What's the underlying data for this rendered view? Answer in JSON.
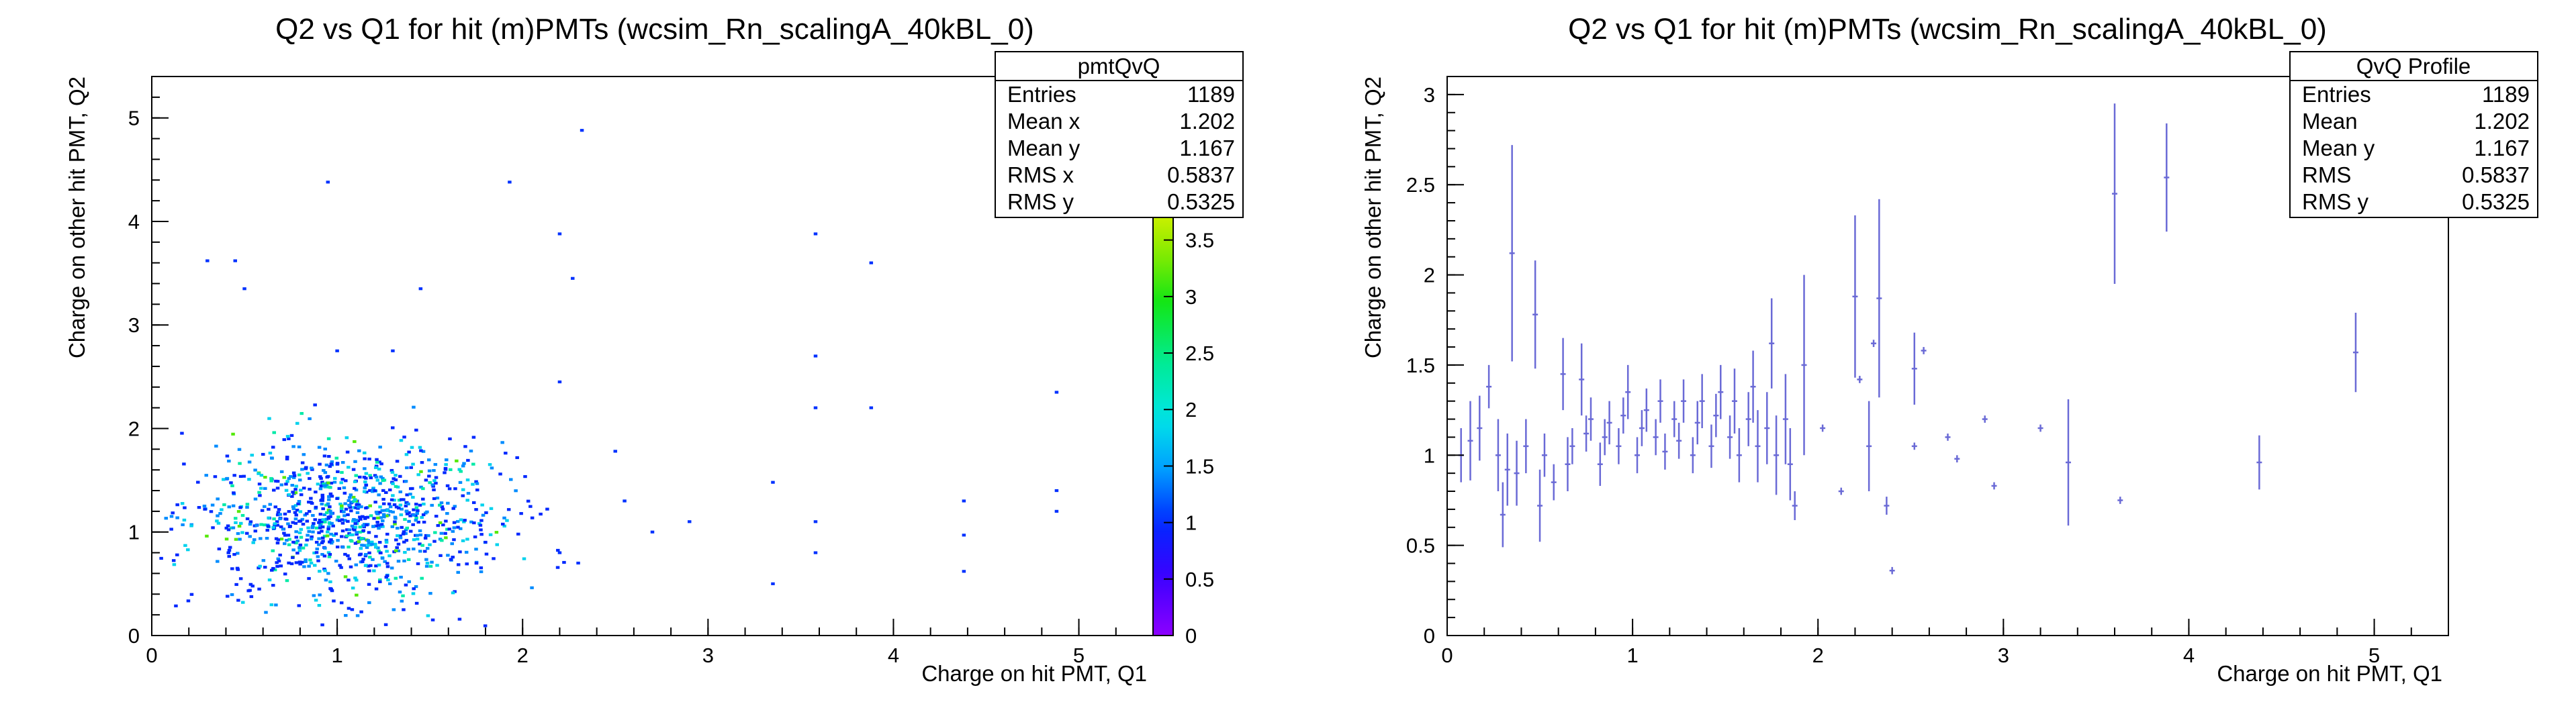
{
  "chart_data": [
    {
      "type": "heatmap",
      "title": "Q2 vs Q1 for hit (m)PMTs (wcsim_Rn_scalingA_40kBL_0)",
      "xlabel": "Charge on hit PMT, Q1",
      "ylabel": "Charge on other hit PMT, Q2",
      "xlim": [
        0,
        5.4
      ],
      "ylim": [
        0,
        5.4
      ],
      "xticks": [
        "0",
        "1",
        "2",
        "3",
        "4",
        "5"
      ],
      "yticks": [
        "0",
        "1",
        "2",
        "3",
        "4",
        "5"
      ],
      "colorbar": {
        "range": [
          0,
          3.7
        ],
        "ticks": [
          "0",
          "0.5",
          "1",
          "1.5",
          "2",
          "2.5",
          "3",
          "3.5"
        ]
      },
      "stats": {
        "name": "pmtQvQ",
        "rows": [
          {
            "label": "Entries",
            "value": "1189"
          },
          {
            "label": "Mean x",
            "value": "1.202"
          },
          {
            "label": "Mean y",
            "value": "1.167"
          },
          {
            "label": "RMS x",
            "value": "0.5837"
          },
          {
            "label": "RMS y",
            "value": "0.5325"
          }
        ]
      },
      "cluster": {
        "center_x": 1.05,
        "center_y": 1.1,
        "spread_x": 0.42,
        "spread_y": 0.38,
        "count": 1050
      },
      "outliers": [
        [
          0.95,
          4.38
        ],
        [
          1.93,
          4.38
        ],
        [
          2.32,
          4.88
        ],
        [
          2.2,
          3.88
        ],
        [
          3.58,
          3.88
        ],
        [
          0.3,
          3.62
        ],
        [
          0.45,
          3.62
        ],
        [
          0.5,
          3.35
        ],
        [
          1.45,
          3.35
        ],
        [
          3.88,
          3.6
        ],
        [
          2.27,
          3.45
        ],
        [
          1.0,
          2.75
        ],
        [
          1.3,
          2.75
        ],
        [
          2.2,
          2.45
        ],
        [
          3.58,
          2.7
        ],
        [
          4.88,
          2.35
        ],
        [
          3.58,
          2.2
        ],
        [
          3.88,
          2.2
        ],
        [
          2.5,
          1.78
        ],
        [
          3.35,
          1.48
        ],
        [
          4.88,
          1.4
        ],
        [
          4.38,
          1.3
        ],
        [
          2.9,
          1.1
        ],
        [
          3.58,
          1.1
        ],
        [
          4.38,
          0.97
        ],
        [
          4.88,
          1.2
        ],
        [
          2.2,
          0.8
        ],
        [
          2.3,
          0.7
        ],
        [
          3.35,
          0.5
        ],
        [
          3.58,
          0.8
        ],
        [
          4.38,
          0.62
        ],
        [
          2.7,
          1.0
        ],
        [
          2.55,
          1.3
        ]
      ]
    },
    {
      "type": "scatter",
      "title": "Q2 vs Q1 for hit (m)PMTs (wcsim_Rn_scalingA_40kBL_0)",
      "xlabel": "Charge on hit PMT, Q1",
      "ylabel": "Charge on other hit PMT, Q2",
      "xlim": [
        0,
        5.4
      ],
      "ylim": [
        0,
        3.1
      ],
      "xticks": [
        "0",
        "1",
        "2",
        "3",
        "4",
        "5"
      ],
      "yticks": [
        "0",
        "0.5",
        "1",
        "1.5",
        "2",
        "2.5",
        "3"
      ],
      "stats": {
        "name": "QvQ Profile",
        "rows": [
          {
            "label": "Entries",
            "value": "1189"
          },
          {
            "label": "Mean",
            "value": "1.202"
          },
          {
            "label": "Mean y",
            "value": "1.167"
          },
          {
            "label": "RMS",
            "value": "0.5837"
          },
          {
            "label": "RMS y",
            "value": "0.5325"
          }
        ]
      },
      "points": [
        {
          "x": 0.075,
          "y": 1.0,
          "err": 0.15
        },
        {
          "x": 0.125,
          "y": 1.08,
          "err": 0.22
        },
        {
          "x": 0.175,
          "y": 1.15,
          "err": 0.18
        },
        {
          "x": 0.225,
          "y": 1.38,
          "err": 0.12
        },
        {
          "x": 0.275,
          "y": 1.0,
          "err": 0.2
        },
        {
          "x": 0.3,
          "y": 0.67,
          "err": 0.18
        },
        {
          "x": 0.325,
          "y": 0.92,
          "err": 0.2
        },
        {
          "x": 0.35,
          "y": 2.12,
          "err": 0.6
        },
        {
          "x": 0.375,
          "y": 0.9,
          "err": 0.18
        },
        {
          "x": 0.425,
          "y": 1.05,
          "err": 0.15
        },
        {
          "x": 0.475,
          "y": 1.78,
          "err": 0.3
        },
        {
          "x": 0.5,
          "y": 0.72,
          "err": 0.2
        },
        {
          "x": 0.525,
          "y": 1.0,
          "err": 0.12
        },
        {
          "x": 0.575,
          "y": 0.85,
          "err": 0.1
        },
        {
          "x": 0.625,
          "y": 1.45,
          "err": 0.2
        },
        {
          "x": 0.65,
          "y": 0.95,
          "err": 0.15
        },
        {
          "x": 0.675,
          "y": 1.05,
          "err": 0.1
        },
        {
          "x": 0.725,
          "y": 1.42,
          "err": 0.2
        },
        {
          "x": 0.75,
          "y": 1.12,
          "err": 0.1
        },
        {
          "x": 0.775,
          "y": 1.2,
          "err": 0.12
        },
        {
          "x": 0.825,
          "y": 0.95,
          "err": 0.12
        },
        {
          "x": 0.85,
          "y": 1.1,
          "err": 0.1
        },
        {
          "x": 0.875,
          "y": 1.18,
          "err": 0.12
        },
        {
          "x": 0.925,
          "y": 1.05,
          "err": 0.1
        },
        {
          "x": 0.95,
          "y": 1.22,
          "err": 0.1
        },
        {
          "x": 0.975,
          "y": 1.35,
          "err": 0.15
        },
        {
          "x": 1.025,
          "y": 1.0,
          "err": 0.1
        },
        {
          "x": 1.05,
          "y": 1.15,
          "err": 0.1
        },
        {
          "x": 1.075,
          "y": 1.25,
          "err": 0.12
        },
        {
          "x": 1.125,
          "y": 1.1,
          "err": 0.1
        },
        {
          "x": 1.15,
          "y": 1.3,
          "err": 0.12
        },
        {
          "x": 1.175,
          "y": 1.02,
          "err": 0.1
        },
        {
          "x": 1.225,
          "y": 1.2,
          "err": 0.1
        },
        {
          "x": 1.25,
          "y": 1.08,
          "err": 0.1
        },
        {
          "x": 1.275,
          "y": 1.3,
          "err": 0.12
        },
        {
          "x": 1.325,
          "y": 1.0,
          "err": 0.1
        },
        {
          "x": 1.35,
          "y": 1.18,
          "err": 0.12
        },
        {
          "x": 1.375,
          "y": 1.3,
          "err": 0.15
        },
        {
          "x": 1.425,
          "y": 1.05,
          "err": 0.12
        },
        {
          "x": 1.45,
          "y": 1.22,
          "err": 0.12
        },
        {
          "x": 1.475,
          "y": 1.35,
          "err": 0.15
        },
        {
          "x": 1.525,
          "y": 1.1,
          "err": 0.12
        },
        {
          "x": 1.55,
          "y": 1.3,
          "err": 0.18
        },
        {
          "x": 1.575,
          "y": 1.0,
          "err": 0.15
        },
        {
          "x": 1.625,
          "y": 1.2,
          "err": 0.15
        },
        {
          "x": 1.65,
          "y": 1.38,
          "err": 0.2
        },
        {
          "x": 1.675,
          "y": 1.05,
          "err": 0.2
        },
        {
          "x": 1.725,
          "y": 1.15,
          "err": 0.2
        },
        {
          "x": 1.75,
          "y": 1.62,
          "err": 0.25
        },
        {
          "x": 1.775,
          "y": 1.0,
          "err": 0.22
        },
        {
          "x": 1.825,
          "y": 1.2,
          "err": 0.25
        },
        {
          "x": 1.85,
          "y": 0.95,
          "err": 0.2
        },
        {
          "x": 1.875,
          "y": 0.72,
          "err": 0.08
        },
        {
          "x": 1.925,
          "y": 1.5,
          "err": 0.5
        },
        {
          "x": 2.025,
          "y": 1.15,
          "err": 0.02
        },
        {
          "x": 2.125,
          "y": 0.8,
          "err": 0.02
        },
        {
          "x": 2.2,
          "y": 1.88,
          "err": 0.45
        },
        {
          "x": 2.225,
          "y": 1.42,
          "err": 0.02
        },
        {
          "x": 2.275,
          "y": 1.05,
          "err": 0.25
        },
        {
          "x": 2.3,
          "y": 1.62,
          "err": 0.02
        },
        {
          "x": 2.33,
          "y": 1.87,
          "err": 0.55
        },
        {
          "x": 2.37,
          "y": 0.72,
          "err": 0.05
        },
        {
          "x": 2.4,
          "y": 0.36,
          "err": 0.02
        },
        {
          "x": 2.52,
          "y": 1.48,
          "err": 0.2
        },
        {
          "x": 2.52,
          "y": 1.05,
          "err": 0.02
        },
        {
          "x": 2.57,
          "y": 1.58,
          "err": 0.02
        },
        {
          "x": 2.7,
          "y": 1.1,
          "err": 0.02
        },
        {
          "x": 2.75,
          "y": 0.98,
          "err": 0.02
        },
        {
          "x": 2.9,
          "y": 1.2,
          "err": 0.02
        },
        {
          "x": 2.95,
          "y": 0.83,
          "err": 0.02
        },
        {
          "x": 3.2,
          "y": 1.15,
          "err": 0.02
        },
        {
          "x": 3.35,
          "y": 0.96,
          "err": 0.35
        },
        {
          "x": 3.6,
          "y": 2.45,
          "err": 0.5
        },
        {
          "x": 3.63,
          "y": 0.75,
          "err": 0.02
        },
        {
          "x": 3.88,
          "y": 2.54,
          "err": 0.3
        },
        {
          "x": 4.38,
          "y": 0.96,
          "err": 0.15
        },
        {
          "x": 4.9,
          "y": 1.57,
          "err": 0.22
        }
      ]
    }
  ]
}
